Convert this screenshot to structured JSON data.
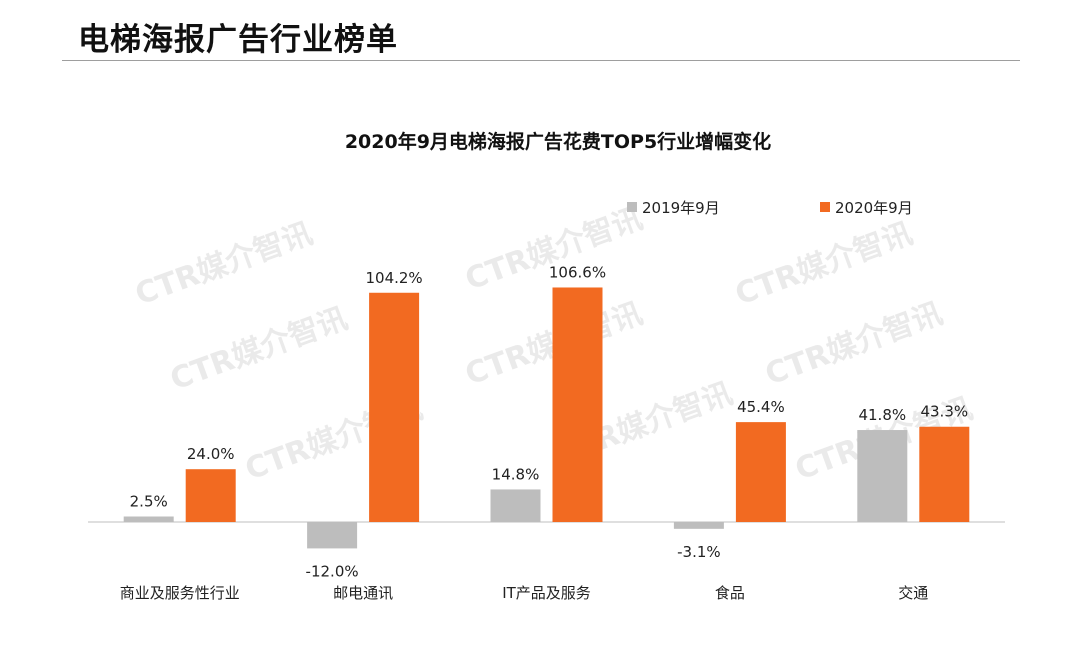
{
  "page": {
    "title": "电梯海报广告行业榜单"
  },
  "watermark": "CTR媒介智讯",
  "colors": {
    "series_2019": "#bdbdbd",
    "series_2020": "#f26a21",
    "axis": "#bfbfbf"
  },
  "chart_data": {
    "type": "bar",
    "title": "2020年9月电梯海报广告花费TOP5行业增幅变化",
    "categories": [
      "商业及服务性行业",
      "邮电通讯",
      "IT产品及服务",
      "食品",
      "交通"
    ],
    "series": [
      {
        "name": "2019年9月",
        "values": [
          2.5,
          -12.0,
          14.8,
          -3.1,
          41.8
        ],
        "labels": [
          "2.5%",
          "-12.0%",
          "14.8%",
          "-3.1%",
          "41.8%"
        ]
      },
      {
        "name": "2020年9月",
        "values": [
          24.0,
          104.2,
          106.6,
          45.4,
          43.3
        ],
        "labels": [
          "24.0%",
          "104.2%",
          "106.6%",
          "45.4%",
          "43.3%"
        ]
      }
    ],
    "ylim": [
      -15,
      110
    ],
    "grid": false,
    "legend": "top-right"
  }
}
